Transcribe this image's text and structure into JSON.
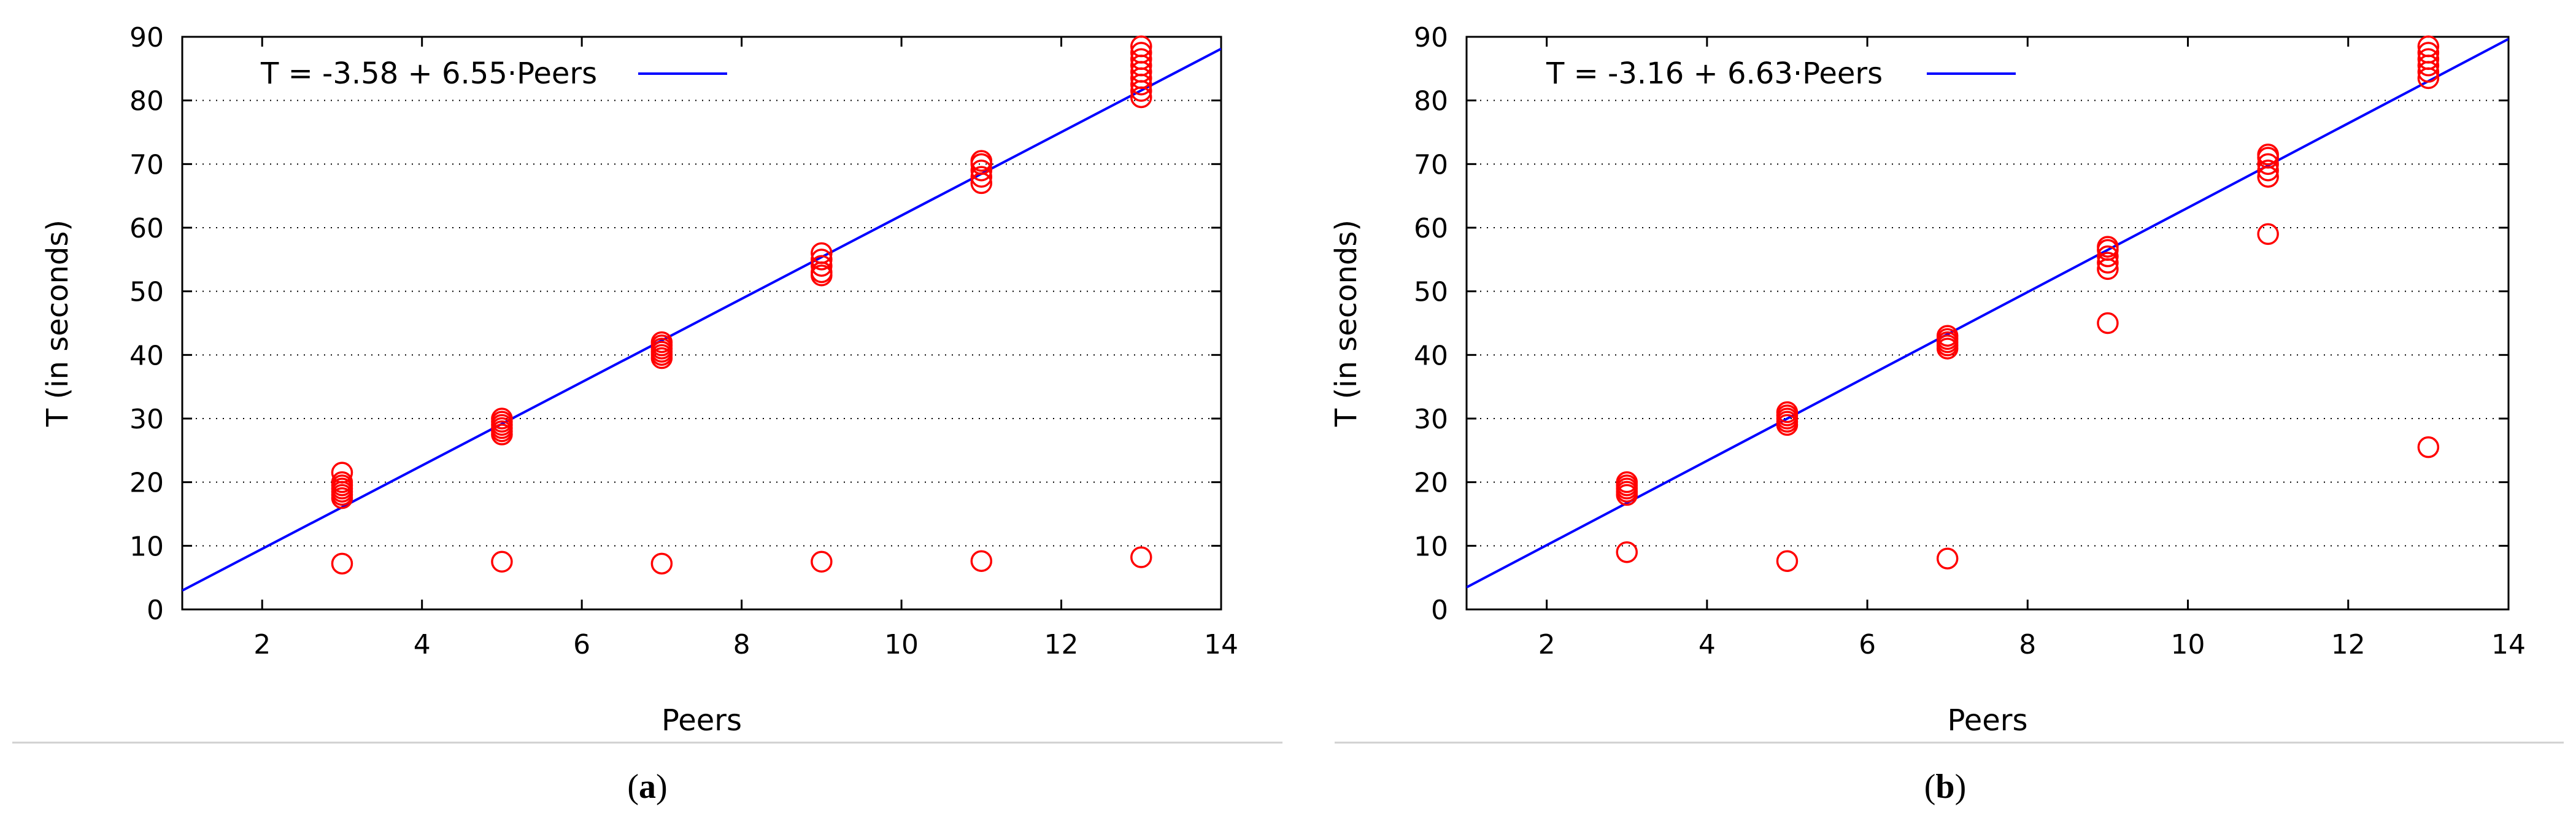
{
  "chart_data": [
    {
      "type": "scatter",
      "caption_letter": "a",
      "xlabel": "Peers",
      "ylabel": "T (in seconds)",
      "xlim": [
        1,
        14
      ],
      "ylim": [
        0,
        90
      ],
      "xticks": [
        2,
        4,
        6,
        8,
        10,
        12,
        14
      ],
      "yticks": [
        0,
        10,
        20,
        30,
        40,
        50,
        60,
        70,
        80,
        90
      ],
      "grid": "horizontal-dotted",
      "legend": {
        "label": "T = -3.58 + 6.55·Peers",
        "placement": "top-left"
      },
      "fit": {
        "intercept": -3.58,
        "slope": 6.55,
        "color": "#0000ff"
      },
      "marker_color": "#ff0000",
      "points": [
        [
          3,
          7.2
        ],
        [
          3,
          17.5
        ],
        [
          3,
          18.0
        ],
        [
          3,
          18.5
        ],
        [
          3,
          19.0
        ],
        [
          3,
          19.5
        ],
        [
          3,
          20.0
        ],
        [
          3,
          21.5
        ],
        [
          5,
          7.5
        ],
        [
          5,
          27.5
        ],
        [
          5,
          28.0
        ],
        [
          5,
          28.5
        ],
        [
          5,
          29.0
        ],
        [
          5,
          29.5
        ],
        [
          5,
          30.0
        ],
        [
          7,
          7.2
        ],
        [
          7,
          39.5
        ],
        [
          7,
          40.0
        ],
        [
          7,
          40.5
        ],
        [
          7,
          41.0
        ],
        [
          7,
          41.5
        ],
        [
          7,
          42.0
        ],
        [
          9,
          7.5
        ],
        [
          9,
          52.5
        ],
        [
          9,
          53.0
        ],
        [
          9,
          54.0
        ],
        [
          9,
          55.0
        ],
        [
          9,
          56.0
        ],
        [
          11,
          7.6
        ],
        [
          11,
          67.0
        ],
        [
          11,
          68.0
        ],
        [
          11,
          69.0
        ],
        [
          11,
          70.0
        ],
        [
          11,
          70.5
        ],
        [
          13,
          8.2
        ],
        [
          13,
          80.5
        ],
        [
          13,
          81.5
        ],
        [
          13,
          82.5
        ],
        [
          13,
          83.5
        ],
        [
          13,
          84.5
        ],
        [
          13,
          85.5
        ],
        [
          13,
          86.5
        ],
        [
          13,
          87.5
        ],
        [
          13,
          88.5
        ]
      ]
    },
    {
      "type": "scatter",
      "caption_letter": "b",
      "xlabel": "Peers",
      "ylabel": "T (in seconds)",
      "xlim": [
        1,
        14
      ],
      "ylim": [
        0,
        90
      ],
      "xticks": [
        2,
        4,
        6,
        8,
        10,
        12,
        14
      ],
      "yticks": [
        0,
        10,
        20,
        30,
        40,
        50,
        60,
        70,
        80,
        90
      ],
      "grid": "horizontal-dotted",
      "legend": {
        "label": "T = -3.16 + 6.63·Peers",
        "placement": "top-left"
      },
      "fit": {
        "intercept": -3.16,
        "slope": 6.63,
        "color": "#0000ff"
      },
      "marker_color": "#ff0000",
      "points": [
        [
          3,
          9.0
        ],
        [
          3,
          18.0
        ],
        [
          3,
          18.5
        ],
        [
          3,
          19.0
        ],
        [
          3,
          19.5
        ],
        [
          3,
          20.0
        ],
        [
          5,
          7.6
        ],
        [
          5,
          29.0
        ],
        [
          5,
          29.5
        ],
        [
          5,
          30.0
        ],
        [
          5,
          30.5
        ],
        [
          5,
          31.0
        ],
        [
          7,
          8.0
        ],
        [
          7,
          41.0
        ],
        [
          7,
          41.5
        ],
        [
          7,
          42.0
        ],
        [
          7,
          42.5
        ],
        [
          7,
          43.0
        ],
        [
          9,
          45.0
        ],
        [
          9,
          53.5
        ],
        [
          9,
          54.5
        ],
        [
          9,
          55.5
        ],
        [
          9,
          56.5
        ],
        [
          9,
          57.0
        ],
        [
          11,
          59.0
        ],
        [
          11,
          68.0
        ],
        [
          11,
          69.0
        ],
        [
          11,
          70.0
        ],
        [
          11,
          71.0
        ],
        [
          11,
          71.5
        ],
        [
          13,
          25.5
        ],
        [
          13,
          83.5
        ],
        [
          13,
          84.5
        ],
        [
          13,
          85.5
        ],
        [
          13,
          86.5
        ],
        [
          13,
          87.5
        ],
        [
          13,
          88.5
        ]
      ]
    }
  ]
}
